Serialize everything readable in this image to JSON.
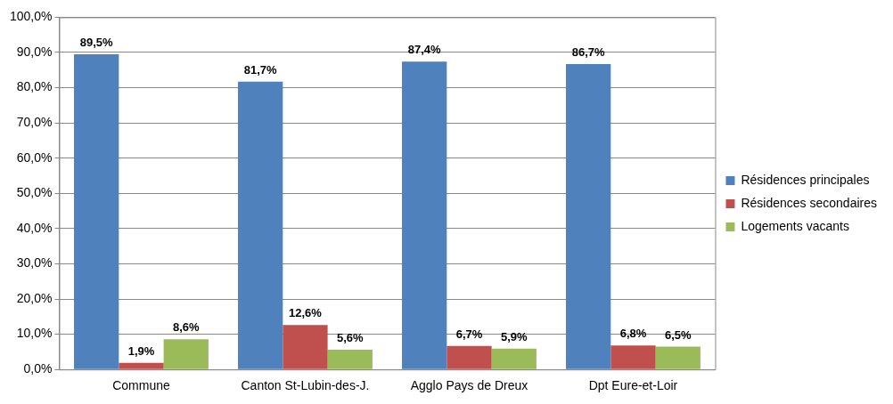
{
  "chart_data": {
    "type": "bar",
    "categories": [
      "Commune",
      "Canton St-Lubin-des-J.",
      "Agglo Pays de Dreux",
      "Dpt Eure-et-Loir"
    ],
    "series": [
      {
        "name": "Résidences principales",
        "color": "#4f81bd",
        "values": [
          89.5,
          81.7,
          87.4,
          86.7
        ],
        "value_labels": [
          "89,5%",
          "81,7%",
          "87,4%",
          "86,7%"
        ]
      },
      {
        "name": "Résidences secondaires",
        "color": "#c0504d",
        "values": [
          1.9,
          12.6,
          6.7,
          6.8
        ],
        "value_labels": [
          "1,9%",
          "12,6%",
          "6,7%",
          "6,8%"
        ]
      },
      {
        "name": "Logements vacants",
        "color": "#9bbb59",
        "values": [
          8.6,
          5.6,
          5.9,
          6.5
        ],
        "value_labels": [
          "8,6%",
          "5,6%",
          "5,9%",
          "6,5%"
        ]
      }
    ],
    "ylim": [
      0,
      100
    ],
    "yticks": [
      {
        "value": 0,
        "label": "0,0%"
      },
      {
        "value": 10,
        "label": "10,0%"
      },
      {
        "value": 20,
        "label": "20,0%"
      },
      {
        "value": 30,
        "label": "30,0%"
      },
      {
        "value": 40,
        "label": "40,0%"
      },
      {
        "value": 50,
        "label": "50,0%"
      },
      {
        "value": 60,
        "label": "60,0%"
      },
      {
        "value": 70,
        "label": "70,0%"
      },
      {
        "value": 80,
        "label": "80,0%"
      },
      {
        "value": 90,
        "label": "90,0%"
      },
      {
        "value": 100,
        "label": "100,0%"
      }
    ],
    "grid": "y",
    "legend": "right"
  }
}
